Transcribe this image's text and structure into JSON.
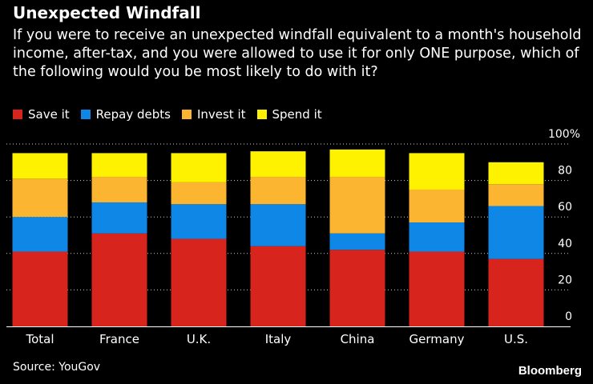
{
  "chart_data": {
    "type": "bar",
    "stacked": true,
    "title": "Unexpected Windfall",
    "subtitle": "If you were to receive an unexpected windfall equivalent to a month's household income, after-tax, and you were allowed to use it for only ONE purpose, which of the following would you be most likely to do with it?",
    "categories": [
      "Total",
      "France",
      "U.K.",
      "Italy",
      "China",
      "Germany",
      "U.S."
    ],
    "series": [
      {
        "name": "Save it",
        "color": "#d7241c",
        "values": [
          41,
          51,
          48,
          44,
          42,
          41,
          37
        ]
      },
      {
        "name": "Repay debts",
        "color": "#0f87e6",
        "values": [
          19,
          17,
          19,
          23,
          9,
          16,
          29
        ]
      },
      {
        "name": "Invest it",
        "color": "#fbb531",
        "values": [
          21,
          14,
          12,
          15,
          31,
          18,
          12
        ]
      },
      {
        "name": "Spend it",
        "color": "#fef200",
        "values": [
          14,
          13,
          16,
          14,
          15,
          20,
          12
        ]
      }
    ],
    "ylim": [
      0,
      100
    ],
    "yticks": [
      0,
      20,
      40,
      60,
      80
    ],
    "ytick_labels": [
      "0",
      "20",
      "40",
      "60",
      "80"
    ],
    "ytop_label": "100%",
    "xlabel": "",
    "ylabel": "",
    "grid": true,
    "legend": "top-left"
  },
  "source": "Source: YouGov",
  "brand": "Bloomberg"
}
